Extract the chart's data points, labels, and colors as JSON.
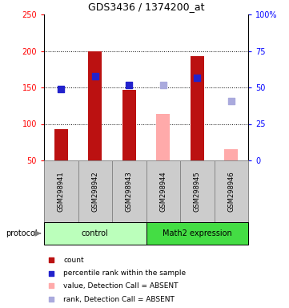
{
  "title": "GDS3436 / 1374200_at",
  "samples": [
    "GSM298941",
    "GSM298942",
    "GSM298943",
    "GSM298944",
    "GSM298945",
    "GSM298946"
  ],
  "bar_values": [
    93,
    200,
    147,
    null,
    193,
    null
  ],
  "bar_absent_values": [
    null,
    null,
    null,
    114,
    null,
    65
  ],
  "rank_values": [
    148,
    165,
    153,
    null,
    163,
    null
  ],
  "rank_absent_values": [
    null,
    null,
    null,
    153,
    null,
    131
  ],
  "bar_color": "#bb1111",
  "bar_absent_color": "#ffaaaa",
  "rank_color": "#2222cc",
  "rank_absent_color": "#aaaadd",
  "ylim_left": [
    50,
    250
  ],
  "ylim_right": [
    0,
    100
  ],
  "yticks_left": [
    50,
    100,
    150,
    200,
    250
  ],
  "yticks_right": [
    0,
    25,
    50,
    75,
    100
  ],
  "ytick_labels_right": [
    "0",
    "25",
    "50",
    "75",
    "100%"
  ],
  "dotted_lines": [
    100,
    150,
    200
  ],
  "groups": [
    {
      "label": "control",
      "samples": [
        0,
        1,
        2
      ],
      "color": "#bbffbb"
    },
    {
      "label": "Math2 expression",
      "samples": [
        3,
        4,
        5
      ],
      "color": "#44dd44"
    }
  ],
  "protocol_label": "protocol",
  "legend": [
    {
      "label": "count",
      "color": "#bb1111"
    },
    {
      "label": "percentile rank within the sample",
      "color": "#2222cc"
    },
    {
      "label": "value, Detection Call = ABSENT",
      "color": "#ffaaaa"
    },
    {
      "label": "rank, Detection Call = ABSENT",
      "color": "#aaaadd"
    }
  ],
  "bar_width": 0.4,
  "rank_marker_size": 35,
  "sample_box_color": "#cccccc",
  "sample_box_edge": "#888888"
}
